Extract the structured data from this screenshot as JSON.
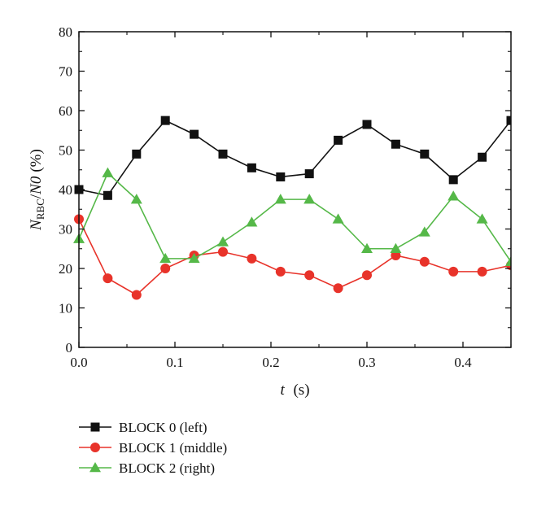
{
  "chart_data": {
    "type": "line",
    "x": [
      0.0,
      0.03,
      0.06,
      0.09,
      0.12,
      0.15,
      0.18,
      0.21,
      0.24,
      0.27,
      0.3,
      0.33,
      0.36,
      0.39,
      0.42,
      0.45
    ],
    "xlim": [
      0.0,
      0.45
    ],
    "ylim": [
      0,
      80
    ],
    "xticks": [
      0.0,
      0.1,
      0.2,
      0.3,
      0.4
    ],
    "xtick_labels": [
      "0.0",
      "0.1",
      "0.2",
      "0.3",
      "0.4"
    ],
    "yticks": [
      0,
      10,
      20,
      30,
      40,
      50,
      60,
      70,
      80
    ],
    "ytick_labels": [
      "0",
      "10",
      "20",
      "30",
      "40",
      "50",
      "60",
      "70",
      "80"
    ],
    "xlabel": {
      "var": "t",
      "unit": "(s)"
    },
    "ylabel": {
      "main": "N",
      "sub": "RBC",
      "rest": "/",
      "var2": "N0",
      "unit": "(%)"
    },
    "grid": false,
    "legend_position": "bottom-left below plot",
    "series": [
      {
        "name": "BLOCK 0 (left)",
        "color": "#111111",
        "marker": "square",
        "values": [
          40,
          38.5,
          49,
          57.5,
          54,
          49,
          45.5,
          43.2,
          44,
          52.5,
          56.5,
          51.5,
          49,
          42.5,
          48.2,
          57.5
        ]
      },
      {
        "name": "BLOCK 1 (middle)",
        "color": "#e8332a",
        "marker": "circle",
        "values": [
          32.5,
          17.5,
          13.3,
          20,
          23.3,
          24.2,
          22.5,
          19.2,
          18.3,
          15,
          18.3,
          23.3,
          21.7,
          19.2,
          19.2,
          20.8
        ]
      },
      {
        "name": "BLOCK 2 (right)",
        "color": "#55b848",
        "marker": "triangle",
        "values": [
          27.5,
          44.2,
          37.5,
          22.5,
          22.5,
          26.7,
          31.7,
          37.5,
          37.5,
          32.5,
          25,
          25,
          29.2,
          38.3,
          32.5,
          21.7
        ]
      }
    ]
  }
}
